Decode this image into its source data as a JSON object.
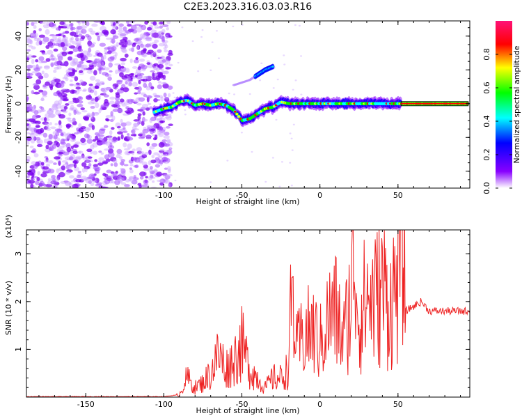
{
  "title": "C2E3.2023.316.03.03.R16",
  "colors": {
    "snr_line": "#ee2222",
    "spectrum_cmap": [
      "#ffffff",
      "#8800ff",
      "#0000ff",
      "#00ffff",
      "#00ff00",
      "#ffff00",
      "#ff0000",
      "#ff00aa"
    ]
  },
  "chart_data": [
    {
      "type": "heatmap",
      "name": "spectrogram",
      "xlabel": "Height of straight line (km)",
      "ylabel": "Frequency (Hz)",
      "xlim": [
        -188,
        96
      ],
      "ylim": [
        -50,
        49
      ],
      "xticks": [
        -150,
        -100,
        -50,
        0,
        50
      ],
      "yticks": [
        -40,
        -20,
        0,
        20,
        40
      ],
      "colorbar": {
        "label": "Normalized spectral amplitude",
        "range": [
          0,
          1
        ],
        "ticks": [
          0.0,
          0.2,
          0.4,
          0.6,
          0.8
        ]
      },
      "features": {
        "noise_region_x": [
          -188,
          -100
        ],
        "main_signal_track": [
          [
            -106,
            -5
          ],
          [
            -100,
            -3
          ],
          [
            -95,
            -2
          ],
          [
            -90,
            1
          ],
          [
            -85,
            2
          ],
          [
            -80,
            -1
          ],
          [
            -75,
            0
          ],
          [
            -70,
            -1
          ],
          [
            -65,
            0
          ],
          [
            -60,
            -1
          ],
          [
            -55,
            -4
          ],
          [
            -50,
            -10
          ],
          [
            -45,
            -9
          ],
          [
            -40,
            -6
          ],
          [
            -35,
            -3
          ],
          [
            -30,
            -2
          ],
          [
            -25,
            1
          ],
          [
            -20,
            0
          ],
          [
            -15,
            0
          ],
          [
            -10,
            0
          ],
          [
            -5,
            0
          ],
          [
            0,
            0
          ],
          [
            10,
            0
          ],
          [
            20,
            0
          ],
          [
            30,
            0
          ],
          [
            40,
            0
          ],
          [
            50,
            0
          ],
          [
            60,
            0
          ],
          [
            70,
            0
          ],
          [
            80,
            0
          ],
          [
            95,
            0
          ]
        ],
        "secondary_track": [
          [
            -55,
            11
          ],
          [
            -45,
            14
          ],
          [
            -40,
            17
          ],
          [
            -35,
            20
          ],
          [
            -30,
            22
          ]
        ]
      }
    },
    {
      "type": "line",
      "name": "snr",
      "xlabel": "Height of straight line (km)",
      "ylabel": "SNR (10 * v/v)",
      "yscale_label": "(x10⁴)",
      "xlim": [
        -188,
        96
      ],
      "ylim": [
        0,
        3.5
      ],
      "xticks": [
        -150,
        -100,
        -50,
        0,
        50
      ],
      "yticks": [
        1,
        2,
        3
      ],
      "series": [
        {
          "x": [
            -188,
            -150,
            -100,
            -90,
            -87,
            -85,
            -80,
            -75,
            -70,
            -65,
            -60,
            -55,
            -50,
            -45,
            -40,
            -35,
            -30,
            -25,
            -20,
            -18,
            -15,
            -10,
            -5,
            0,
            5,
            10,
            15,
            20,
            22,
            25,
            30,
            35,
            40,
            45,
            50,
            53,
            55,
            60,
            65,
            70,
            80,
            96
          ],
          "y": [
            0.01,
            0.01,
            0.01,
            0.05,
            0.3,
            0.4,
            0.2,
            0.3,
            0.5,
            0.9,
            0.6,
            0.8,
            1.1,
            0.6,
            0.4,
            0.2,
            0.4,
            0.4,
            0.6,
            2.3,
            1.0,
            1.3,
            1.4,
            1.1,
            1.6,
            1.8,
            1.2,
            2.1,
            3.0,
            1.6,
            2.1,
            2.0,
            2.3,
            1.9,
            2.5,
            3.5,
            1.8,
            1.9,
            2.0,
            1.8,
            1.8,
            1.8
          ]
        }
      ]
    }
  ]
}
